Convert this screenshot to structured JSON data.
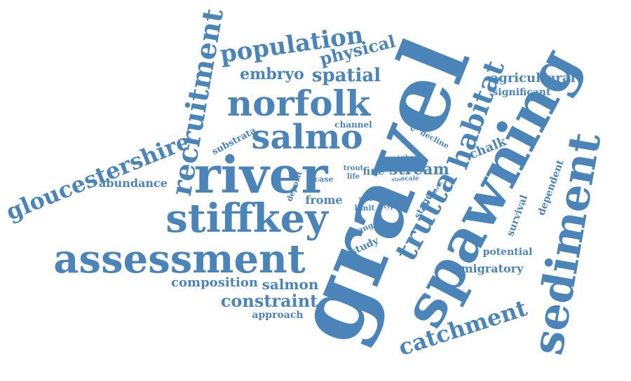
{
  "colors": {
    "word": "#4a84b8",
    "background": "#ffffff"
  },
  "words": [
    "gravel",
    "spawning",
    "sediment",
    "river",
    "stiffkey",
    "assessment",
    "norfolk",
    "salmo",
    "recruitment",
    "gloucestershire",
    "population",
    "trutta",
    "habitat",
    "catchment",
    "physical",
    "embryo",
    "spatial",
    "agricultural",
    "significant",
    "constraint",
    "salmon",
    "composition",
    "approach",
    "abundance",
    "stream",
    "channel",
    "control",
    "decline",
    "chalk",
    "substrata",
    "dependent",
    "survival",
    "potential",
    "migratory",
    "frome",
    "study",
    "range",
    "stage",
    "site",
    "limit",
    "type",
    "deposit",
    "case",
    "life",
    "trout",
    "fine",
    "year",
    "role",
    "short",
    "pool",
    "size",
    "scale",
    "term"
  ]
}
